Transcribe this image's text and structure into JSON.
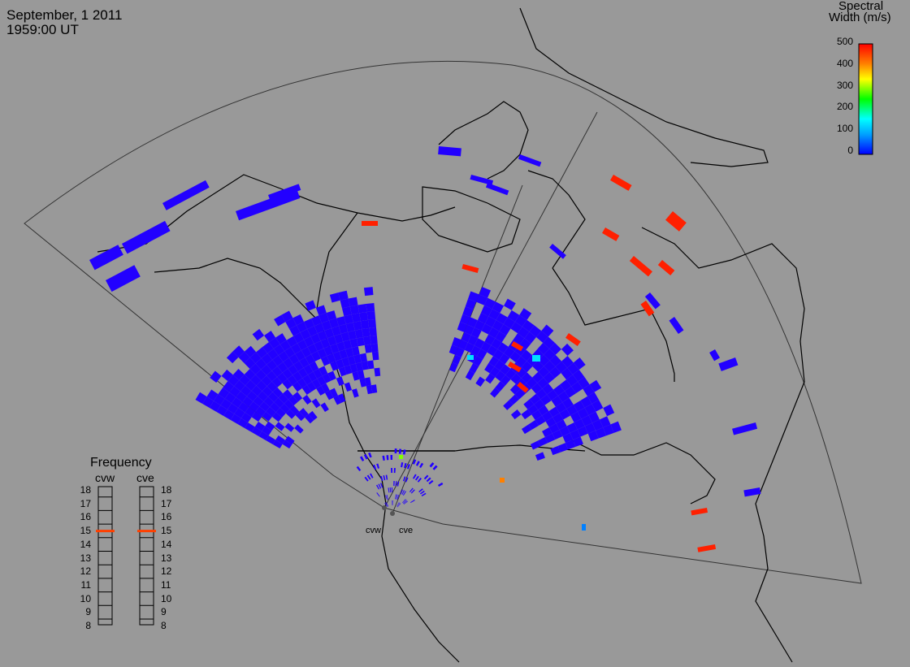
{
  "header": {
    "date": "September, 1 2011",
    "time": "1959:00 UT"
  },
  "colorbar": {
    "title_line1": "Spectral",
    "title_line2": "Width (m/s)",
    "ticks": [
      "500",
      "400",
      "300",
      "200",
      "100",
      "0"
    ],
    "min": 0,
    "max": 500,
    "colors": [
      "#0000ff",
      "#00a0ff",
      "#00ffff",
      "#00ff00",
      "#ffff00",
      "#ff8000",
      "#ff0000"
    ]
  },
  "frequency_panel": {
    "title": "Frequency",
    "radar_left": "cvw",
    "radar_right": "cve",
    "scale": [
      "18",
      "17",
      "16",
      "15",
      "14",
      "13",
      "12",
      "11",
      "10",
      "9",
      "8"
    ],
    "cvw_mhz": 15,
    "cve_mhz": 15,
    "marker_color": "#ff4000"
  },
  "radar_sites": {
    "left_label": "cvw",
    "right_label": "cve"
  },
  "colors": {
    "background": "#999999",
    "coastline": "#000000",
    "fov_outline": "#333333",
    "scatter_low": "#2200ff",
    "scatter_high": "#ff2000"
  }
}
